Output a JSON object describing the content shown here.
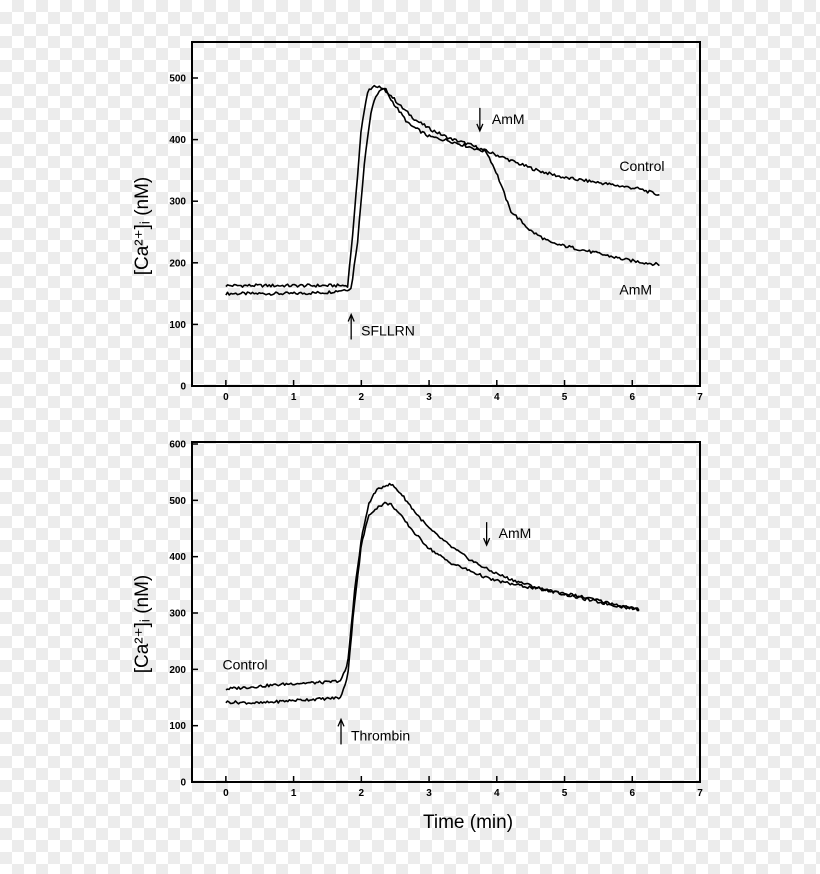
{
  "chart_data": [
    {
      "type": "line",
      "ylabel": "[Ca²⁺]ᵢ (nM)",
      "xlabel": "",
      "xlim": [
        -0.5,
        7
      ],
      "ylim": [
        0,
        500
      ],
      "x_ticks": [
        0,
        1,
        2,
        3,
        4,
        5,
        6,
        7
      ],
      "y_ticks": [
        0,
        100,
        200,
        300,
        400,
        500
      ],
      "grid": false,
      "series": [
        {
          "name": "Control",
          "x": [
            0,
            0.5,
            1.0,
            1.5,
            1.85,
            1.95,
            2.05,
            2.15,
            2.25,
            2.35,
            2.45,
            2.6,
            2.8,
            3.0,
            3.3,
            3.6,
            3.8,
            4.0,
            4.3,
            4.6,
            5.0,
            5.4,
            5.8,
            6.1,
            6.4
          ],
          "values": [
            150,
            150,
            150,
            152,
            158,
            240,
            370,
            450,
            478,
            482,
            470,
            452,
            432,
            418,
            402,
            392,
            383,
            375,
            362,
            350,
            338,
            332,
            325,
            320,
            310
          ]
        },
        {
          "name": "AmM",
          "x": [
            0,
            0.5,
            1.0,
            1.5,
            1.8,
            1.9,
            2.0,
            2.1,
            2.2,
            2.35,
            2.5,
            2.7,
            3.0,
            3.3,
            3.6,
            3.85,
            4.0,
            4.2,
            4.5,
            4.8,
            5.1,
            5.5,
            5.9,
            6.2,
            6.4
          ],
          "values": [
            163,
            163,
            163,
            163,
            163,
            280,
            420,
            480,
            488,
            480,
            455,
            425,
            405,
            398,
            388,
            380,
            345,
            285,
            252,
            232,
            225,
            215,
            205,
            200,
            197
          ]
        }
      ],
      "annotations": [
        {
          "text": "SFLLRN",
          "x": 1.85,
          "y": 95,
          "arrow": "up"
        },
        {
          "text": "AmM",
          "x": 3.75,
          "y": 432,
          "arrow": "down"
        }
      ]
    },
    {
      "type": "line",
      "ylabel": "[Ca²⁺]ᵢ (nM)",
      "xlabel": "Time (min)",
      "xlim": [
        -0.5,
        7
      ],
      "ylim": [
        0,
        600
      ],
      "x_ticks": [
        0,
        1,
        2,
        3,
        4,
        5,
        6,
        7
      ],
      "y_ticks": [
        0,
        100,
        200,
        300,
        400,
        500,
        600
      ],
      "grid": false,
      "series": [
        {
          "name": "Control",
          "x": [
            0,
            0.5,
            1.0,
            1.5,
            1.7,
            1.8,
            1.9,
            2.0,
            2.1,
            2.2,
            2.35,
            2.45,
            2.6,
            2.8,
            3.0,
            3.3,
            3.6,
            3.9,
            4.2,
            4.6,
            5.0,
            5.4,
            5.8,
            6.1
          ],
          "values": [
            165,
            170,
            175,
            177,
            180,
            210,
            340,
            430,
            490,
            515,
            527,
            528,
            510,
            478,
            450,
            420,
            395,
            375,
            360,
            345,
            333,
            322,
            312,
            306
          ]
        },
        {
          "name": "AmM",
          "x": [
            0,
            0.5,
            1.0,
            1.5,
            1.7,
            1.8,
            1.9,
            2.0,
            2.1,
            2.2,
            2.35,
            2.45,
            2.6,
            2.8,
            3.0,
            3.3,
            3.6,
            3.9,
            4.2,
            4.6,
            5.0,
            5.4,
            5.8,
            6.1
          ],
          "values": [
            142,
            140,
            145,
            148,
            150,
            190,
            320,
            420,
            470,
            485,
            495,
            492,
            470,
            440,
            415,
            390,
            375,
            360,
            352,
            343,
            335,
            325,
            314,
            306
          ]
        }
      ],
      "annotations": [
        {
          "text": "Thrombin",
          "x": 1.7,
          "y": 88,
          "arrow": "up"
        },
        {
          "text": "AmM",
          "x": 3.85,
          "y": 440,
          "arrow": "down"
        },
        {
          "text": "Control",
          "x": -0.05,
          "y": 200,
          "arrow": "none"
        }
      ]
    }
  ]
}
